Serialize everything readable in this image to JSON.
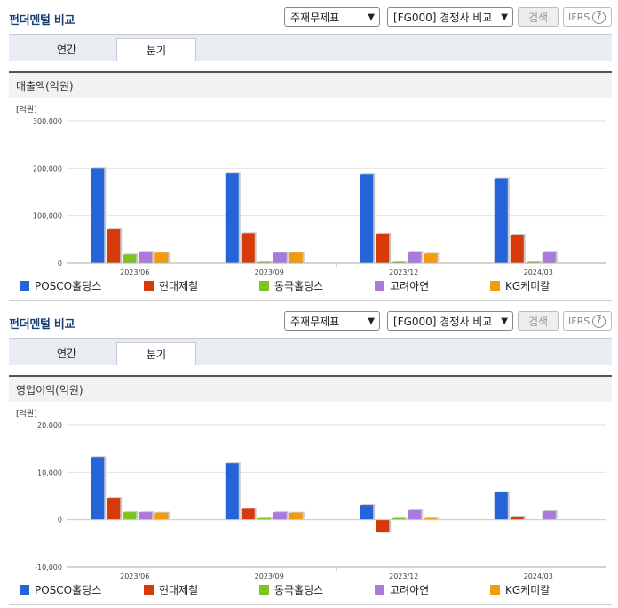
{
  "header": {
    "title": "펀더멘털 비교",
    "select1": "주재무제표",
    "select2": "[FG000] 경쟁사 비교",
    "search_label": "검색",
    "ifrs_label": "IFRS",
    "help_glyph": "?"
  },
  "tabs": [
    "연간",
    "분기"
  ],
  "active_tab": 1,
  "colors": {
    "POSCO홀딩스": "#2563d9",
    "현대제철": "#d63a0a",
    "동국홀딩스": "#7cc41e",
    "고려아연": "#a97ad9",
    "KG케미칼": "#f59a0a"
  },
  "chart_data": [
    {
      "type": "bar",
      "title": "매출액(억원)",
      "unit_label": "[억원]",
      "categories": [
        "2023/06",
        "2023/09",
        "2023/12",
        "2024/03"
      ],
      "ylim": [
        0,
        300000
      ],
      "yticks": [
        "0",
        "100,000",
        "200,000",
        "300,000"
      ],
      "ytick_values": [
        0,
        100000,
        200000,
        300000
      ],
      "series": [
        {
          "name": "POSCO홀딩스",
          "values": [
            200000,
            189000,
            187000,
            179000
          ]
        },
        {
          "name": "현대제철",
          "values": [
            71000,
            63000,
            62000,
            60000
          ]
        },
        {
          "name": "동국홀딩스",
          "values": [
            18000,
            2000,
            2000,
            2000
          ]
        },
        {
          "name": "고려아연",
          "values": [
            24000,
            22000,
            24000,
            24000
          ]
        },
        {
          "name": "KG케미칼",
          "values": [
            22000,
            22000,
            20000,
            0
          ]
        }
      ]
    },
    {
      "type": "bar",
      "title": "영업이익(억원)",
      "unit_label": "[억원]",
      "categories": [
        "2023/06",
        "2023/09",
        "2023/12",
        "2024/03"
      ],
      "ylim": [
        -10000,
        20000
      ],
      "yticks": [
        "-10,000",
        "0",
        "10,000",
        "20,000"
      ],
      "ytick_values": [
        -10000,
        0,
        10000,
        20000
      ],
      "series": [
        {
          "name": "POSCO홀딩스",
          "values": [
            13200,
            11900,
            3100,
            5800
          ]
        },
        {
          "name": "현대제철",
          "values": [
            4600,
            2300,
            -2600,
            500
          ]
        },
        {
          "name": "동국홀딩스",
          "values": [
            1600,
            300,
            300,
            0
          ]
        },
        {
          "name": "고려아연",
          "values": [
            1600,
            1600,
            2000,
            1800
          ]
        },
        {
          "name": "KG케미칼",
          "values": [
            1500,
            1500,
            300,
            0
          ]
        }
      ]
    }
  ]
}
